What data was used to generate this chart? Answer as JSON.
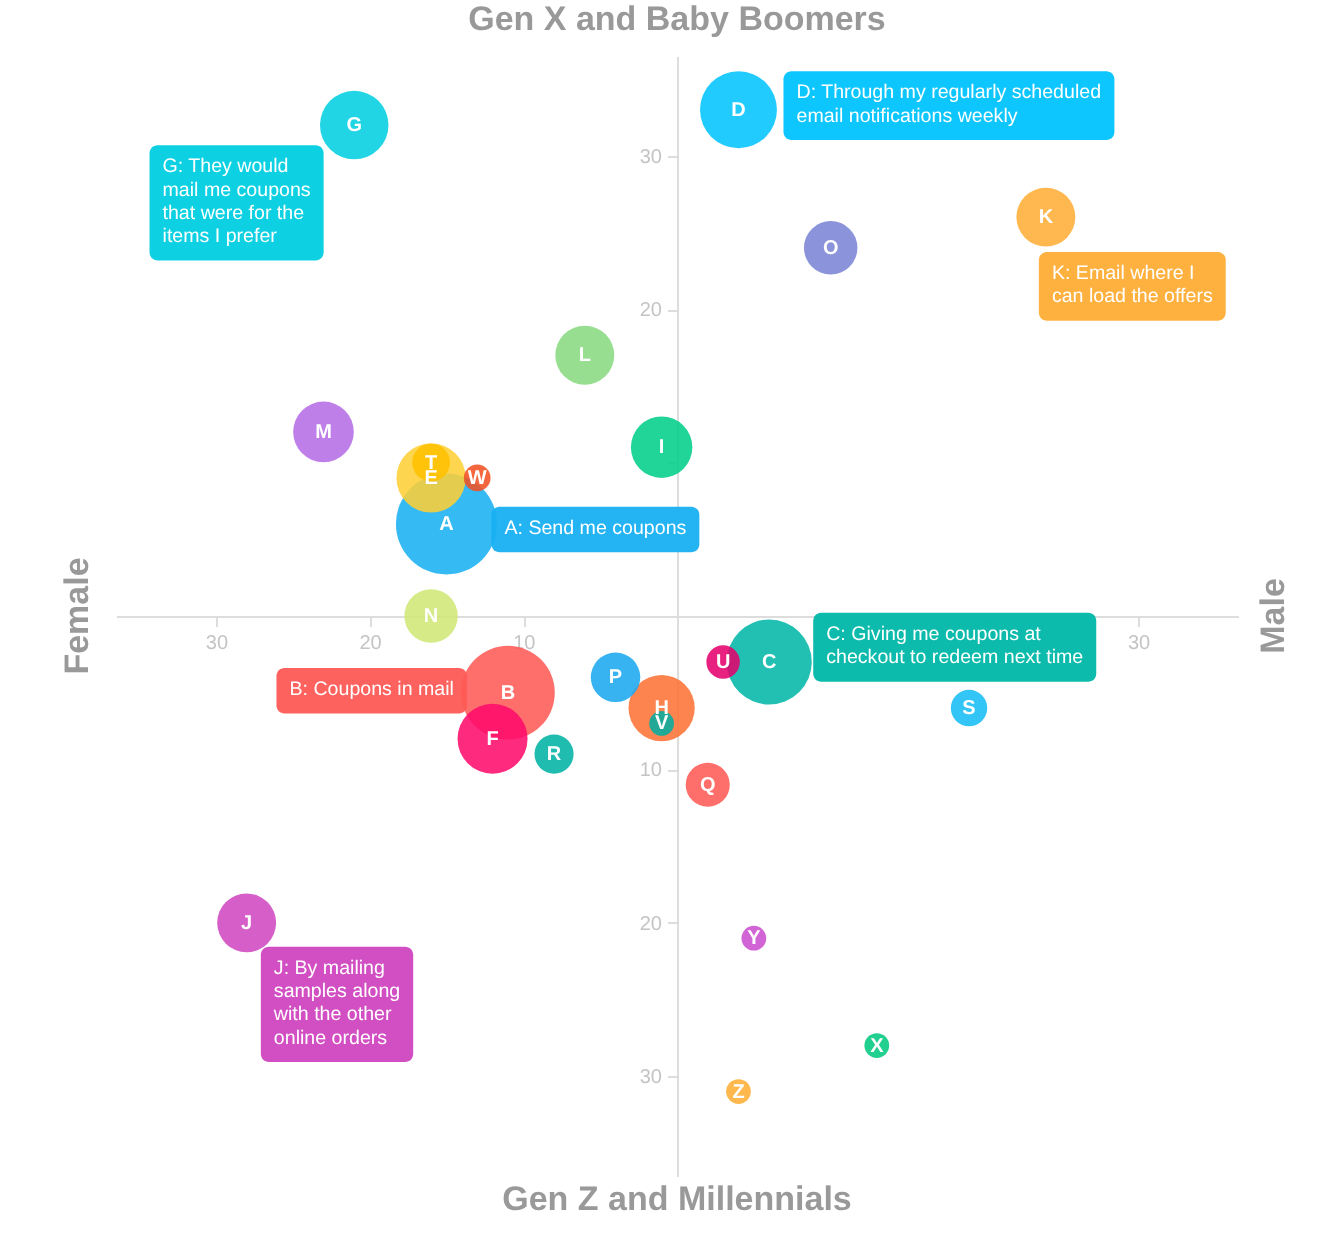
{
  "chart_data": {
    "type": "bubble",
    "marker": "circle",
    "xlim": [
      -36.5,
      36.5
    ],
    "ylim": [
      -36.5,
      36.5
    ],
    "xticks": [
      {
        "value": -30,
        "label": "30"
      },
      {
        "value": -20,
        "label": "20"
      },
      {
        "value": -10,
        "label": "10"
      },
      {
        "value": 10,
        "label": null
      },
      {
        "value": 20,
        "label": null
      },
      30
    ],
    "yticks": [
      {
        "value": -30,
        "label": "30"
      },
      {
        "value": -20,
        "label": "20"
      },
      {
        "value": -10,
        "label": "10"
      },
      {
        "value": 10,
        "label": null
      },
      20,
      30
    ],
    "annotations": [
      "Gen X and Baby Boomers",
      "Female",
      "Male",
      "Gen Z and Millennials",
      {
        "text": "A: Send me coupons",
        "x": -15,
        "y": 6
      },
      {
        "text": "B: Coupons in mail",
        "x": -11,
        "y": -5
      },
      {
        "text": "C: Giving me coupons at checkout to redeem next time",
        "x": 6,
        "y": -3
      },
      {
        "text": "D: Through my regularly scheduled email notifications weekly",
        "x": 4,
        "y": 33
      },
      {
        "text": "G: They would mail me coupons that were for the items I prefer",
        "x": -21,
        "y": 32
      },
      {
        "text": "J: By mailing samples along with the other online orders",
        "x": -28,
        "y": -20
      },
      {
        "text": "K: Email where I can load the offers",
        "x": 24,
        "y": 26
      }
    ],
    "series": [
      {
        "name": "A",
        "color": "#18b0f2",
        "x": [
          -15
        ],
        "values": [
          6
        ],
        "sizes": [
          1
        ]
      },
      {
        "name": "B",
        "color": "#fe5a55",
        "x": [
          -11
        ],
        "values": [
          -5
        ],
        "sizes": [
          0.86
        ]
      },
      {
        "name": "C",
        "color": "#00b7a8",
        "x": [
          6
        ],
        "values": [
          -3
        ],
        "sizes": [
          0.71
        ]
      },
      {
        "name": "D",
        "color": "#00c3fd",
        "x": [
          4
        ],
        "values": [
          33
        ],
        "sizes": [
          0.58
        ]
      },
      {
        "name": "E",
        "color": "#fdcf35",
        "x": [
          -16
        ],
        "values": [
          9
        ],
        "sizes": [
          0.47
        ]
      },
      {
        "name": "F",
        "color": "#fe0a6b",
        "x": [
          -12
        ],
        "values": [
          -8
        ],
        "sizes": [
          0.48
        ]
      },
      {
        "name": "G",
        "color": "#00cfe0",
        "x": [
          -21
        ],
        "values": [
          32
        ],
        "sizes": [
          0.46
        ]
      },
      {
        "name": "H",
        "color": "#fe7235",
        "x": [
          -1
        ],
        "values": [
          -6
        ],
        "sizes": [
          0.43
        ]
      },
      {
        "name": "I",
        "color": "#00ce89",
        "x": [
          -1
        ],
        "values": [
          11
        ],
        "sizes": [
          0.37
        ]
      },
      {
        "name": "J",
        "color": "#d046c0",
        "x": [
          -28
        ],
        "values": [
          -20
        ],
        "sizes": [
          0.34
        ]
      },
      {
        "name": "K",
        "color": "#ffad36",
        "x": [
          24
        ],
        "values": [
          26
        ],
        "sizes": [
          0.34
        ]
      },
      {
        "name": "L",
        "color": "#89d97f",
        "x": [
          -6
        ],
        "values": [
          17
        ],
        "sizes": [
          0.34
        ]
      },
      {
        "name": "M",
        "color": "#b66ce6",
        "x": [
          -23
        ],
        "values": [
          12
        ],
        "sizes": [
          0.36
        ]
      },
      {
        "name": "N",
        "color": "#d0e776",
        "x": [
          -16
        ],
        "values": [
          0
        ],
        "sizes": [
          0.28
        ]
      },
      {
        "name": "O",
        "color": "#7a84d5",
        "x": [
          10
        ],
        "values": [
          24
        ],
        "sizes": [
          0.28
        ]
      },
      {
        "name": "P",
        "color": "#1aa8ef",
        "x": [
          -4
        ],
        "values": [
          -4
        ],
        "sizes": [
          0.24
        ]
      },
      {
        "name": "Q",
        "color": "#fe5a55",
        "x": [
          2
        ],
        "values": [
          -11
        ],
        "sizes": [
          0.19
        ]
      },
      {
        "name": "R",
        "color": "#00b2a4",
        "x": [
          -8
        ],
        "values": [
          -9
        ],
        "sizes": [
          0.15
        ]
      },
      {
        "name": "S",
        "color": "#16bcf6",
        "x": [
          19
        ],
        "values": [
          -6
        ],
        "sizes": [
          0.13
        ]
      },
      {
        "name": "T",
        "color": "#ffc000",
        "x": [
          -16
        ],
        "values": [
          10
        ],
        "sizes": [
          0.14
        ]
      },
      {
        "name": "U",
        "color": "#e5006d",
        "x": [
          3
        ],
        "values": [
          -3
        ],
        "sizes": [
          0.11
        ]
      },
      {
        "name": "V",
        "color": "#00ada2",
        "x": [
          -1
        ],
        "values": [
          -7
        ],
        "sizes": [
          0.06
        ]
      },
      {
        "name": "W",
        "color": "#f25021",
        "x": [
          -13
        ],
        "values": [
          9
        ],
        "sizes": [
          0.07
        ]
      },
      {
        "name": "X",
        "color": "#00c87e",
        "x": [
          13
        ],
        "values": [
          -28
        ],
        "sizes": [
          0.06
        ]
      },
      {
        "name": "Y",
        "color": "#cb4ecf",
        "x": [
          5
        ],
        "values": [
          -21
        ],
        "sizes": [
          0.06
        ]
      },
      {
        "name": "Z",
        "color": "#ffad33",
        "x": [
          4
        ],
        "values": [
          -31
        ],
        "sizes": [
          0.06
        ]
      }
    ]
  }
}
